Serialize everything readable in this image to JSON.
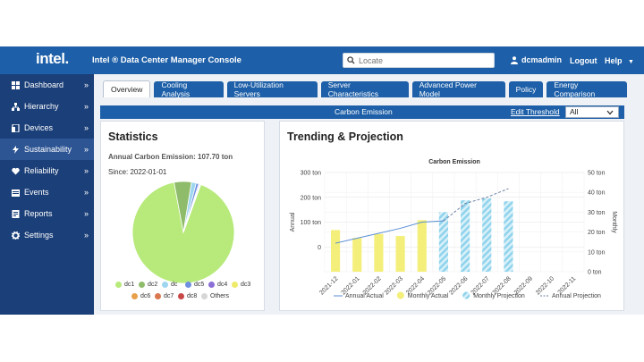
{
  "header": {
    "logo": "intel.",
    "title": "Intel ® Data Center Manager Console",
    "search_placeholder": "Locate",
    "user": "dcmadmin",
    "logout": "Logout",
    "help": "Help"
  },
  "sidebar": {
    "items": [
      {
        "label": "Dashboard",
        "icon": "dashboard-icon"
      },
      {
        "label": "Hierarchy",
        "icon": "hierarchy-icon"
      },
      {
        "label": "Devices",
        "icon": "devices-icon"
      },
      {
        "label": "Sustainability",
        "icon": "bolt-icon",
        "active": true
      },
      {
        "label": "Reliability",
        "icon": "heartbeat-icon"
      },
      {
        "label": "Events",
        "icon": "events-icon"
      },
      {
        "label": "Reports",
        "icon": "reports-icon"
      },
      {
        "label": "Settings",
        "icon": "gear-icon"
      }
    ]
  },
  "tabs": [
    "Overview",
    "Cooling Analysis",
    "Low-Utilization Servers",
    "Server Characteristics",
    "Advanced Power Model",
    "Policy",
    "Energy Comparison"
  ],
  "active_tab": "Overview",
  "subbar": {
    "title": "Carbon Emission",
    "edit_link": "Edit Threshold",
    "select_value": "All"
  },
  "statistics": {
    "title": "Statistics",
    "annual": "Annual Carbon Emission: 107.70 ton",
    "since": "Since: 2022-01-01"
  },
  "pie": {
    "slices": [
      {
        "name": "dc1",
        "value": 91.5,
        "color": "#b7ea7a"
      },
      {
        "name": "dc2",
        "value": 5.5,
        "color": "#8fbc6b"
      },
      {
        "name": "dc",
        "value": 1.5,
        "color": "#9fd6ef"
      },
      {
        "name": "dc5",
        "value": 0.8,
        "color": "#6f8fe0"
      },
      {
        "name": "dc4",
        "value": 0.3,
        "color": "#8a6fd6"
      },
      {
        "name": "dc3",
        "value": 0.2,
        "color": "#eeea6a"
      },
      {
        "name": "dc6",
        "value": 0.1,
        "color": "#e8a04a"
      },
      {
        "name": "dc7",
        "value": 0.05,
        "color": "#d9774f"
      },
      {
        "name": "dc8",
        "value": 0.03,
        "color": "#c84848"
      },
      {
        "name": "Others",
        "value": 0.02,
        "color": "#d6d6d6"
      }
    ]
  },
  "trending": {
    "title": "Trending & Projection"
  },
  "chart_data": {
    "type": "bar",
    "title": "Carbon Emission",
    "ylabel": "Annual",
    "y2label": "Monthly",
    "categories": [
      "2021-12",
      "2022-01",
      "2022-02",
      "2022-03",
      "2022-04",
      "2022-05",
      "2022-06",
      "2022-07",
      "2022-08",
      "2022-09",
      "2022-10",
      "2022-11"
    ],
    "y_ticks": [
      "300 ton",
      "200 ton",
      "100 ton",
      "0"
    ],
    "ylim": [
      -100,
      300
    ],
    "y2_ticks": [
      "50 ton",
      "40 ton",
      "30 ton",
      "20 ton",
      "10 ton",
      "0 ton"
    ],
    "y2lim": [
      0,
      50
    ],
    "series": [
      {
        "name": "Monthly Actual",
        "kind": "bar",
        "axis": "y2",
        "color": "#f4ef7a",
        "values": [
          21,
          17,
          19,
          18,
          26,
          null,
          null,
          null,
          null,
          null,
          null,
          null
        ]
      },
      {
        "name": "Monthly Projection",
        "kind": "bar-hatched",
        "axis": "y2",
        "color": "#a8dcef",
        "values": [
          null,
          null,
          null,
          null,
          null,
          30,
          36,
          37,
          35.5,
          null,
          null,
          null
        ]
      },
      {
        "name": "Annual Actual",
        "kind": "line",
        "axis": "y",
        "color": "#5b8fd6",
        "values": [
          15,
          35,
          55,
          75,
          100,
          105,
          null,
          null,
          null,
          null,
          null,
          null
        ]
      },
      {
        "name": "Annual Projection",
        "kind": "dashed-line",
        "axis": "y",
        "color": "#6b7fa0",
        "values": [
          null,
          null,
          null,
          null,
          null,
          105,
          175,
          200,
          235,
          null,
          null,
          null
        ]
      }
    ],
    "legend": [
      "Annual Actual",
      "Monthly Actual",
      "Monthly Projection",
      "Annual Projection"
    ],
    "legend_position": "bottom",
    "grid": true
  }
}
